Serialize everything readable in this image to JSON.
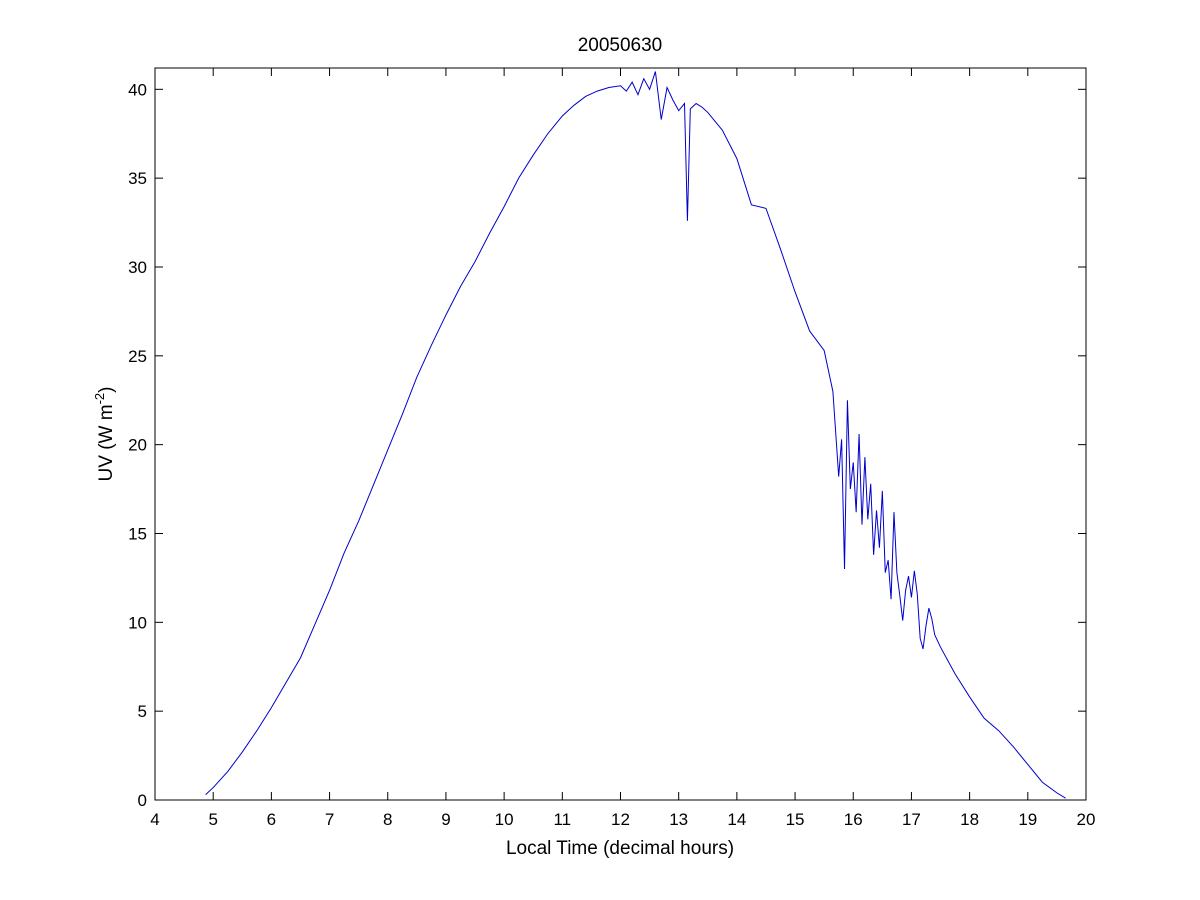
{
  "chart_data": {
    "type": "line",
    "title": "20050630",
    "xlabel": "Local Time (decimal hours)",
    "ylabel_main": "UV (W m",
    "ylabel_sup": "-2",
    "ylabel_close": ")",
    "xlim": [
      4,
      20
    ],
    "ylim": [
      0,
      41.2
    ],
    "xticks": [
      4,
      5,
      6,
      7,
      8,
      9,
      10,
      11,
      12,
      13,
      14,
      15,
      16,
      17,
      18,
      19,
      20
    ],
    "yticks": [
      0,
      5,
      10,
      15,
      20,
      25,
      30,
      35,
      40
    ],
    "grid": false,
    "line_color": "#0000cc",
    "series": [
      {
        "x": [
          4.87,
          5.0,
          5.25,
          5.5,
          5.75,
          6.0,
          6.25,
          6.5,
          6.75,
          7.0,
          7.25,
          7.5,
          7.75,
          8.0,
          8.25,
          8.5,
          8.75,
          9.0,
          9.25,
          9.5,
          9.75,
          10.0,
          10.25,
          10.5,
          10.75,
          11.0,
          11.2,
          11.4,
          11.6,
          11.8,
          12.0,
          12.1,
          12.2,
          12.3,
          12.4,
          12.5,
          12.6,
          12.7,
          12.8,
          12.9,
          13.0,
          13.1,
          13.15,
          13.2,
          13.3,
          13.4,
          13.5,
          13.6,
          13.75,
          14.0,
          14.25,
          14.5,
          14.75,
          15.0,
          15.25,
          15.5,
          15.65,
          15.75,
          15.8,
          15.85,
          15.9,
          15.95,
          16.0,
          16.05,
          16.1,
          16.15,
          16.2,
          16.25,
          16.3,
          16.35,
          16.4,
          16.45,
          16.5,
          16.55,
          16.6,
          16.65,
          16.7,
          16.75,
          16.8,
          16.85,
          16.9,
          16.95,
          17.0,
          17.05,
          17.1,
          17.15,
          17.2,
          17.25,
          17.3,
          17.35,
          17.4,
          17.5,
          17.75,
          18.0,
          18.25,
          18.5,
          18.75,
          19.0,
          19.25,
          19.5,
          19.65
        ],
        "y": [
          0.3,
          0.7,
          1.6,
          2.7,
          3.9,
          5.2,
          6.6,
          8.0,
          9.9,
          11.8,
          13.9,
          15.7,
          17.7,
          19.7,
          21.7,
          23.8,
          25.6,
          27.3,
          28.9,
          30.3,
          31.9,
          33.4,
          35.0,
          36.3,
          37.5,
          38.5,
          39.1,
          39.6,
          39.9,
          40.1,
          40.2,
          39.9,
          40.4,
          39.7,
          40.6,
          40.0,
          41.0,
          38.3,
          40.1,
          39.4,
          38.8,
          39.2,
          32.6,
          38.9,
          39.2,
          39.0,
          38.7,
          38.3,
          37.7,
          36.1,
          33.5,
          33.3,
          31.0,
          28.6,
          26.4,
          25.3,
          23.0,
          18.2,
          20.3,
          13.0,
          22.5,
          17.5,
          19.0,
          16.2,
          20.6,
          15.5,
          19.3,
          15.8,
          17.8,
          13.8,
          16.3,
          14.2,
          17.4,
          12.8,
          13.5,
          11.3,
          16.2,
          12.8,
          11.5,
          10.1,
          11.8,
          12.6,
          11.4,
          12.9,
          11.6,
          9.1,
          8.5,
          9.8,
          10.8,
          10.2,
          9.3,
          8.6,
          7.1,
          5.8,
          4.6,
          3.9,
          3.0,
          2.0,
          1.0,
          0.4,
          0.1
        ]
      }
    ]
  }
}
